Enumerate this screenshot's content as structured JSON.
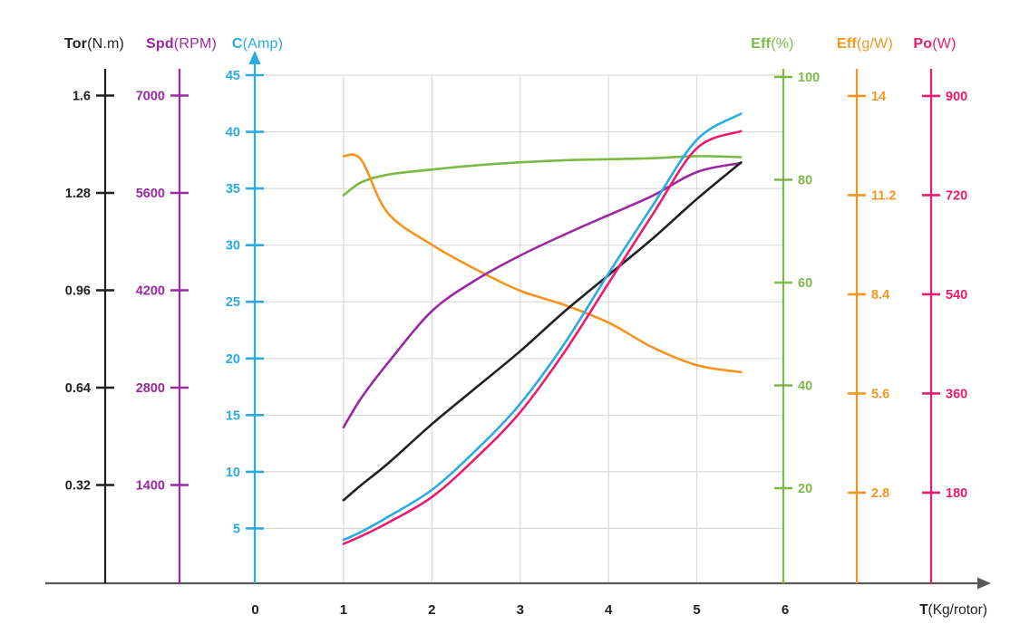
{
  "chart_data": {
    "type": "line",
    "title": "",
    "xlabel_bold": "T",
    "xlabel_rest": "(Kg/rotor)",
    "x_ticks": [
      "0",
      "1",
      "2",
      "3",
      "4",
      "5",
      "6"
    ],
    "x_tick_values": [
      0,
      1,
      2,
      3,
      4,
      5,
      6
    ],
    "x_range": [
      0,
      6
    ],
    "grid": true,
    "legend_position": "none",
    "grid_color": "#d9d9d9",
    "frame_color": "#58585a",
    "x": [
      1,
      1.2,
      1.5,
      2,
      2.5,
      3,
      3.5,
      4,
      4.5,
      5,
      5.5
    ],
    "axes": [
      {
        "id": "tor",
        "title_bold": "Tor",
        "title_rest": "(N.m)",
        "unit": "N.m",
        "color": "#231f20",
        "side": "left",
        "tick_labels": [
          "1.6",
          "1.28",
          "0.96",
          "0.64",
          "0.32"
        ],
        "tick_values": [
          1.6,
          1.28,
          0.96,
          0.64,
          0.32
        ]
      },
      {
        "id": "spd",
        "title_bold": "Spd",
        "title_rest": "(RPM)",
        "unit": "RPM",
        "color": "#9b28a2",
        "side": "left",
        "tick_labels": [
          "7000",
          "5600",
          "4200",
          "2800",
          "1400"
        ],
        "tick_values": [
          7000,
          5600,
          4200,
          2800,
          1400
        ]
      },
      {
        "id": "amp",
        "title_bold": "C",
        "title_rest": "(Amp)",
        "unit": "Amp",
        "color": "#29abe2",
        "side": "left",
        "tick_labels": [
          "45",
          "40",
          "35",
          "30",
          "25",
          "20",
          "15",
          "10",
          "5"
        ],
        "tick_values": [
          45,
          40,
          35,
          30,
          25,
          20,
          15,
          10,
          5
        ]
      },
      {
        "id": "effpct",
        "title_bold": "Eff",
        "title_rest": "(%)",
        "unit": "%",
        "color": "#7cb944",
        "side": "right",
        "tick_labels": [
          "100",
          "80",
          "60",
          "40",
          "20"
        ],
        "tick_values": [
          100,
          80,
          60,
          40,
          20
        ]
      },
      {
        "id": "effgw",
        "title_bold": "Eff",
        "title_rest": "(g/W)",
        "unit": "g/W",
        "color": "#f7941e",
        "side": "right",
        "tick_labels": [
          "14",
          "11.2",
          "8.4",
          "5.6",
          "2.8"
        ],
        "tick_values": [
          14,
          11.2,
          8.4,
          5.6,
          2.8
        ]
      },
      {
        "id": "po",
        "title_bold": "Po",
        "title_rest": "(W)",
        "unit": "W",
        "color": "#ed1a6f",
        "side": "right",
        "tick_labels": [
          "900",
          "720",
          "540",
          "360",
          "180"
        ],
        "tick_values": [
          900,
          720,
          540,
          360,
          180
        ]
      }
    ],
    "series": [
      {
        "name": "torque",
        "axis": "tor",
        "color": "#231f20",
        "values": [
          0.27,
          0.32,
          0.39,
          0.52,
          0.64,
          0.76,
          0.89,
          1.01,
          1.13,
          1.26,
          1.38
        ]
      },
      {
        "name": "speed",
        "axis": "spd",
        "color": "#9b28a2",
        "values": [
          2230,
          2650,
          3150,
          3900,
          4350,
          4700,
          5000,
          5280,
          5560,
          5900,
          6030
        ]
      },
      {
        "name": "current",
        "axis": "amp",
        "color": "#29abe2",
        "values": [
          4.0,
          4.7,
          6.0,
          8.4,
          11.9,
          16.0,
          21.3,
          27.5,
          33.5,
          39.3,
          41.6
        ]
      },
      {
        "name": "efficiency-percent",
        "axis": "effpct",
        "color": "#7cb944",
        "values": [
          77,
          79.5,
          81,
          82,
          82.8,
          83.4,
          83.8,
          84.0,
          84.2,
          84.6,
          84.4
        ]
      },
      {
        "name": "efficiency-g-per-w",
        "axis": "effgw",
        "color": "#f7941e",
        "values": [
          12.3,
          12.2,
          10.7,
          9.8,
          9.1,
          8.5,
          8.1,
          7.6,
          6.9,
          6.4,
          6.2
        ]
      },
      {
        "name": "power",
        "axis": "po",
        "color": "#ed1a6f",
        "values": [
          87,
          101,
          125,
          172,
          243,
          326,
          435,
          560,
          685,
          805,
          836
        ]
      }
    ]
  }
}
